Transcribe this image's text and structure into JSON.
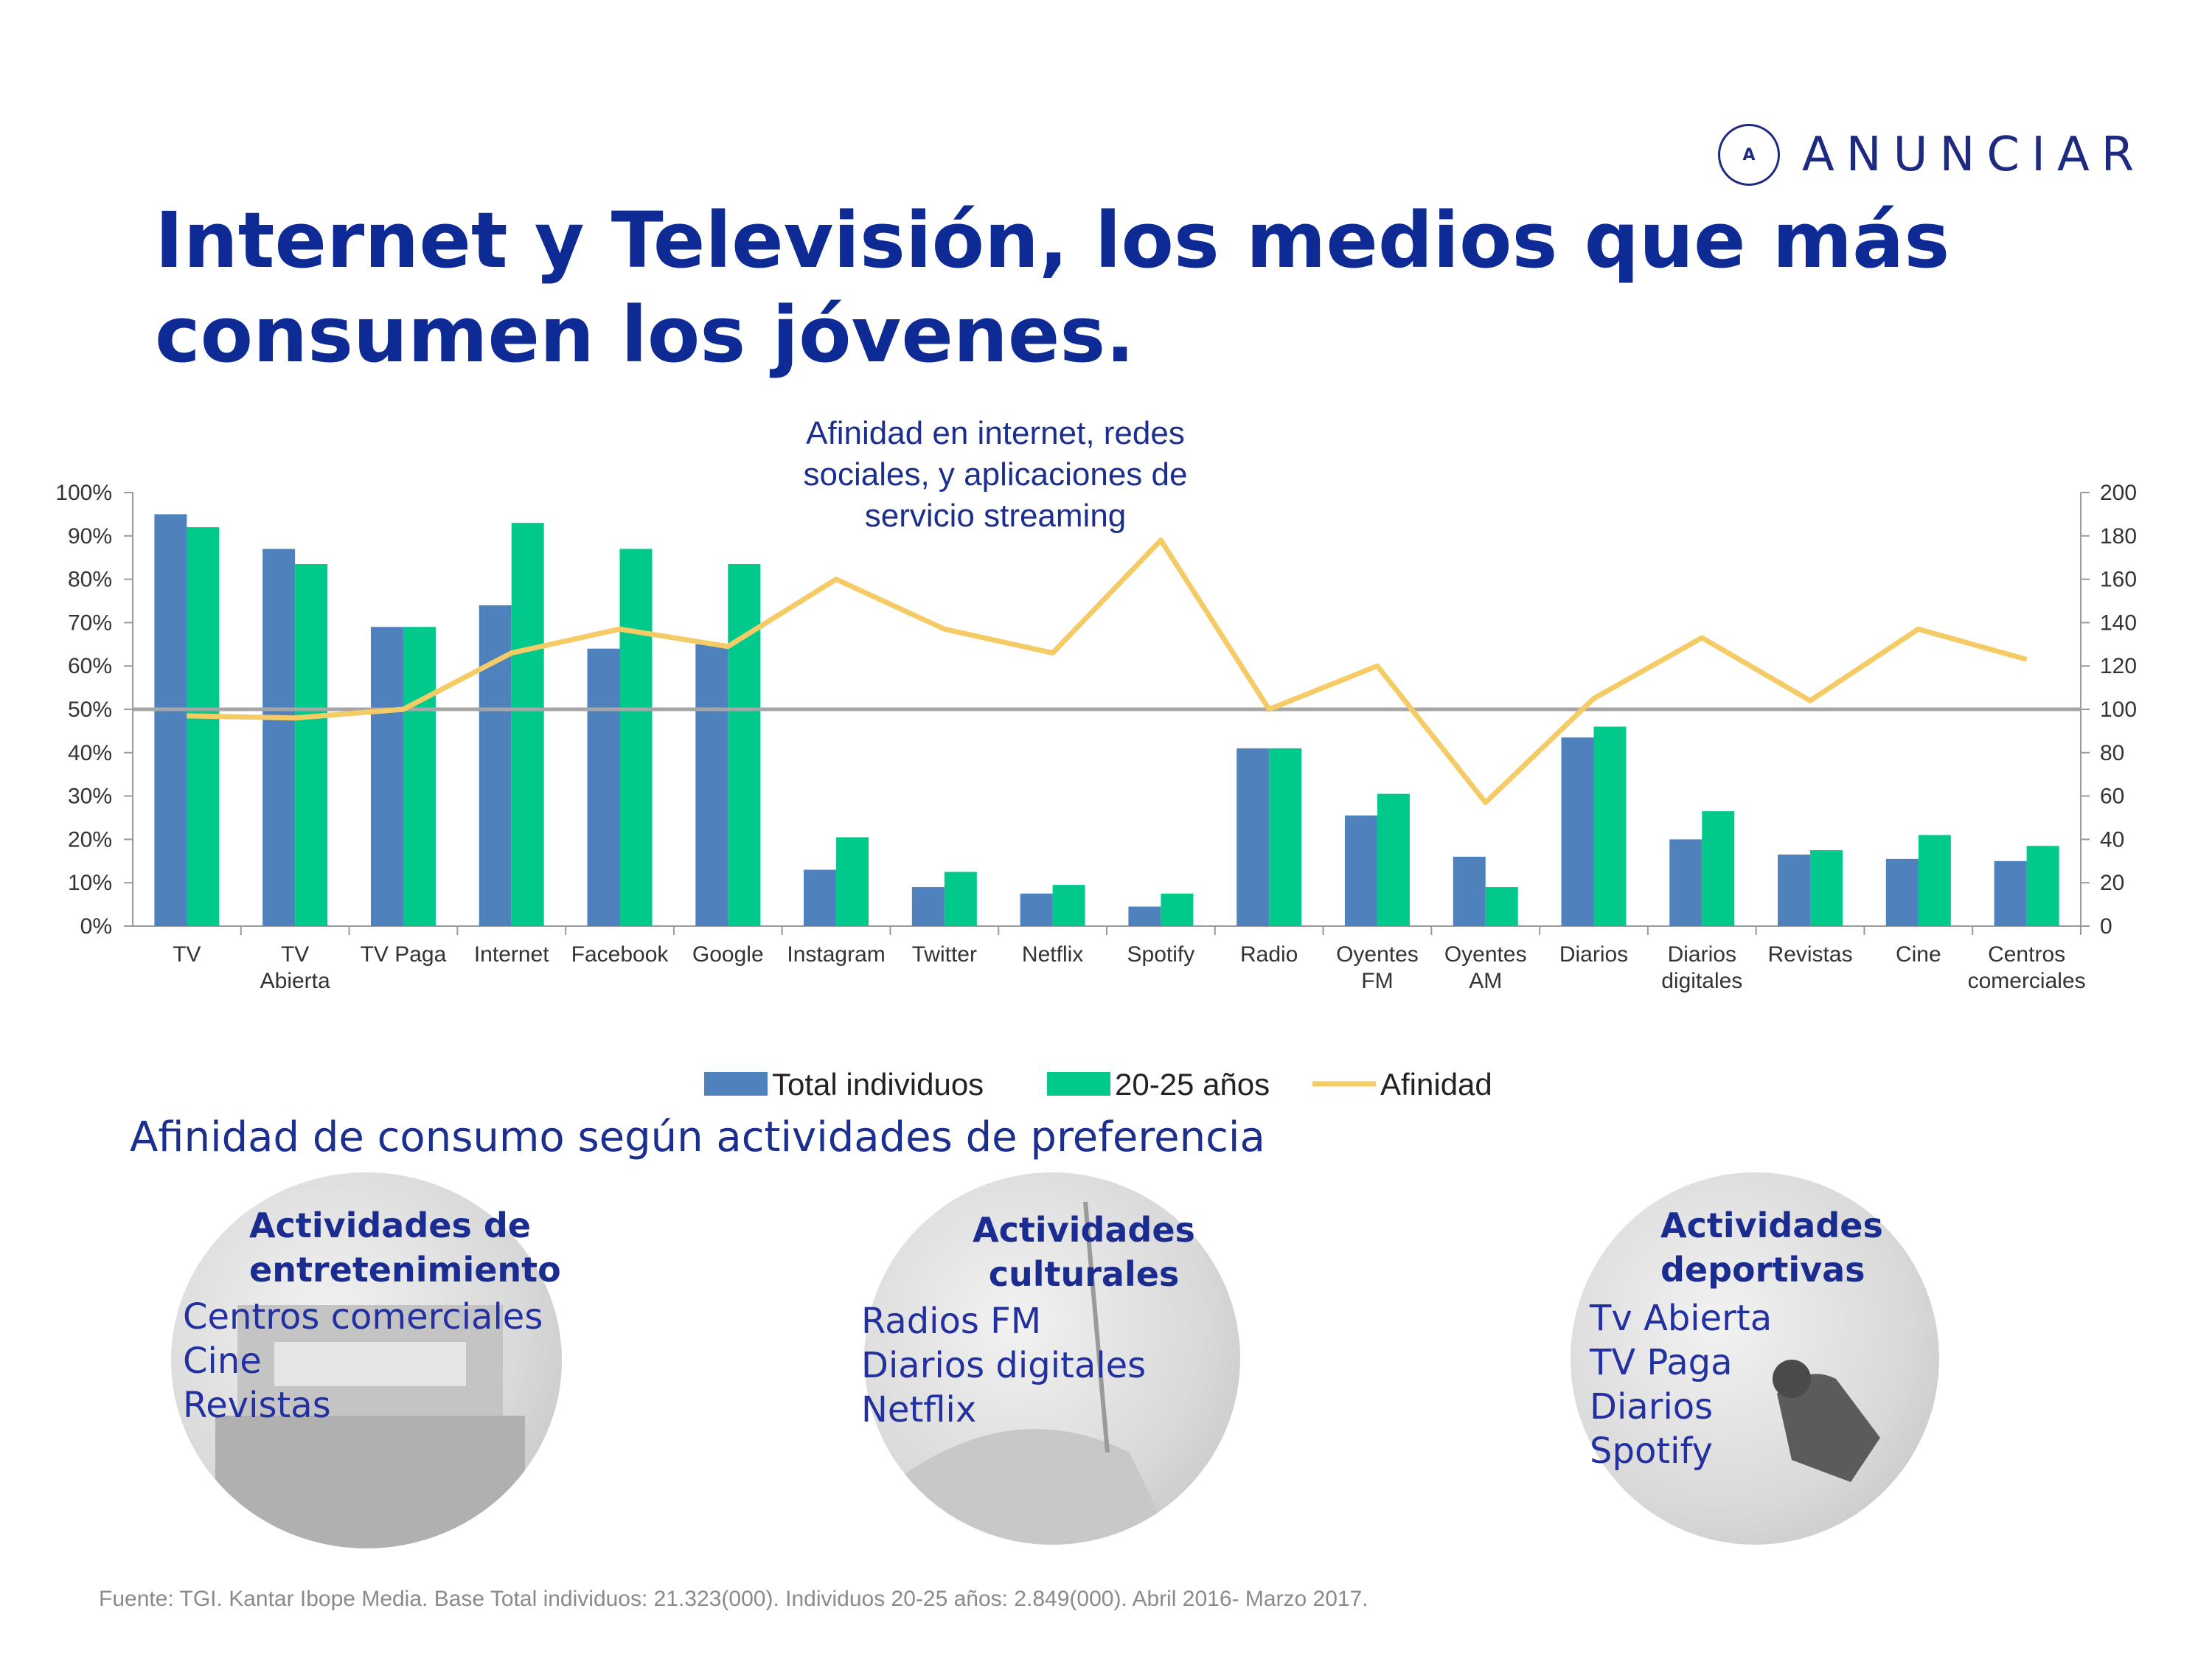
{
  "brand": {
    "name": "ANUNCIAR",
    "mark": "A"
  },
  "title": "Internet y Televisión, los medios que más consumen los jóvenes.",
  "chart_annotation": "Afinidad en internet, redes sociales, y aplicaciones de servicio streaming",
  "chart_data": {
    "type": "bar",
    "categories": [
      "TV",
      "TV Abierta",
      "TV Paga",
      "Internet",
      "Facebook",
      "Google",
      "Instagram",
      "Twitter",
      "Netflix",
      "Spotify",
      "Radio",
      "Oyentes FM",
      "Oyentes AM",
      "Diarios",
      "Diarios digitales",
      "Revistas",
      "Cine",
      "Centros comerciales"
    ],
    "series": [
      {
        "name": "Total individuos",
        "kind": "bar",
        "axis": "left",
        "color": "#4f81bd",
        "values": [
          95,
          87,
          69,
          74,
          64,
          65,
          13,
          9,
          7.5,
          4.5,
          41,
          25.5,
          16,
          43.5,
          20,
          16.5,
          15.5,
          15
        ]
      },
      {
        "name": "20-25 años",
        "kind": "bar",
        "axis": "left",
        "color": "#00c98b",
        "values": [
          92,
          83.5,
          69,
          93,
          87,
          83.5,
          20.5,
          12.5,
          9.5,
          7.5,
          41,
          30.5,
          9,
          46,
          26.5,
          17.5,
          21,
          18.5
        ]
      },
      {
        "name": "Afinidad",
        "kind": "line",
        "axis": "right",
        "color": "#f5cb66",
        "values": [
          97,
          96,
          100,
          126,
          137,
          129,
          160,
          137,
          126,
          178,
          100,
          120,
          57,
          105,
          133,
          104,
          137,
          123
        ]
      }
    ],
    "y_left": {
      "min": 0,
      "max": 100,
      "step": 10,
      "ticks": [
        "0%",
        "10%",
        "20%",
        "30%",
        "40%",
        "50%",
        "60%",
        "70%",
        "80%",
        "90%",
        "100%"
      ]
    },
    "y_right": {
      "min": 0,
      "max": 200,
      "step": 20,
      "ticks": [
        "0",
        "20",
        "40",
        "60",
        "80",
        "100",
        "120",
        "140",
        "160",
        "180",
        "200"
      ]
    },
    "reference_line": 100,
    "legend_position": "bottom"
  },
  "legend": [
    "Total individuos",
    "20-25 años",
    "Afinidad"
  ],
  "section_title": "Afinidad de consumo según actividades de preferencia",
  "activities": [
    {
      "heading": "Actividades de entretenimiento",
      "items": [
        "Centros comerciales",
        "Cine",
        "Revistas"
      ]
    },
    {
      "heading": "Actividades culturales",
      "items": [
        "Radios FM",
        "Diarios digitales",
        "Netflix"
      ]
    },
    {
      "heading": "Actividades deportivas",
      "items": [
        "Tv Abierta",
        "TV Paga",
        "Diarios",
        "Spotify"
      ]
    }
  ],
  "source": "Fuente: TGI. Kantar Ibope Media. Base Total individuos: 21.323(000).  Individuos 20-25 años: 2.849(000). Abril 2016- Marzo 2017."
}
